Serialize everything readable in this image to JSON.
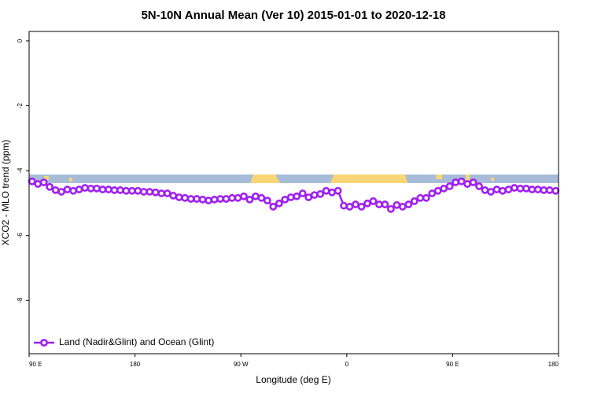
{
  "chart_data": {
    "type": "line",
    "title": "5N-10N Annual Mean (Ver 10)   2015-01-01 to 2020-12-18",
    "xlabel": "Longitude (deg E)",
    "ylabel": "XCO2 - MLO trend (ppm)",
    "xlim": [
      90,
      540
    ],
    "ylim": [
      -9.64,
      0.29
    ],
    "xticks": [
      {
        "value": 90,
        "label": "90 E"
      },
      180,
      {
        "value": 270,
        "label": "90 W"
      },
      {
        "value": 360,
        "label": "0"
      },
      {
        "value": 450,
        "label": "90 E"
      },
      {
        "value": 540,
        "label": "180"
      }
    ],
    "yticks": [
      0,
      -2,
      -4,
      -6,
      -8
    ],
    "legend": "bottom-left",
    "x": [
      92.5,
      97.5,
      102.5,
      107.5,
      112.5,
      117.5,
      122.5,
      127.5,
      132.5,
      137.5,
      142.5,
      147.5,
      152.5,
      157.5,
      162.5,
      167.5,
      172.5,
      177.5,
      182.5,
      187.5,
      192.5,
      197.5,
      202.5,
      207.5,
      212.5,
      217.5,
      222.5,
      227.5,
      232.5,
      237.5,
      242.5,
      247.5,
      252.5,
      257.5,
      262.5,
      267.5,
      272.5,
      277.5,
      282.5,
      287.5,
      292.5,
      297.5,
      302.5,
      307.5,
      312.5,
      317.5,
      322.5,
      327.5,
      332.5,
      337.5,
      342.5,
      347.5,
      352.5,
      357.5,
      362.5,
      367.5,
      372.5,
      377.5,
      382.5,
      387.5,
      392.5,
      397.5,
      402.5,
      407.5,
      412.5,
      417.5,
      422.5,
      427.5,
      432.5,
      437.5,
      442.5,
      447.5,
      452.5,
      457.5,
      462.5,
      467.5,
      472.5,
      477.5,
      482.5,
      487.5,
      492.5,
      497.5,
      502.5,
      507.5,
      512.5,
      517.5,
      522.5,
      527.5,
      532.5,
      537.5
    ],
    "series": [
      {
        "name": "Land (Nadir&Glint) and Ocean (Glint)",
        "color": "#a020f0",
        "values": [
          -4.33,
          -4.41,
          -4.36,
          -4.5,
          -4.6,
          -4.65,
          -4.58,
          -4.62,
          -4.58,
          -4.53,
          -4.55,
          -4.55,
          -4.58,
          -4.58,
          -4.6,
          -4.6,
          -4.62,
          -4.62,
          -4.62,
          -4.65,
          -4.65,
          -4.67,
          -4.7,
          -4.7,
          -4.77,
          -4.82,
          -4.84,
          -4.87,
          -4.87,
          -4.89,
          -4.92,
          -4.89,
          -4.87,
          -4.87,
          -4.84,
          -4.84,
          -4.79,
          -4.89,
          -4.79,
          -4.84,
          -4.92,
          -5.11,
          -5.01,
          -4.89,
          -4.82,
          -4.79,
          -4.7,
          -4.82,
          -4.75,
          -4.72,
          -4.62,
          -4.67,
          -4.62,
          -5.08,
          -5.11,
          -5.04,
          -5.11,
          -5.01,
          -4.94,
          -5.04,
          -5.04,
          -5.18,
          -5.06,
          -5.11,
          -5.04,
          -4.94,
          -4.84,
          -4.84,
          -4.7,
          -4.62,
          -4.55,
          -4.48,
          -4.36,
          -4.33,
          -4.41,
          -4.36,
          -4.48,
          -4.6,
          -4.65,
          -4.58,
          -4.62,
          -4.58,
          -4.53,
          -4.55,
          -4.55,
          -4.58,
          -4.58,
          -4.6,
          -4.6,
          -4.62
        ]
      }
    ]
  }
}
